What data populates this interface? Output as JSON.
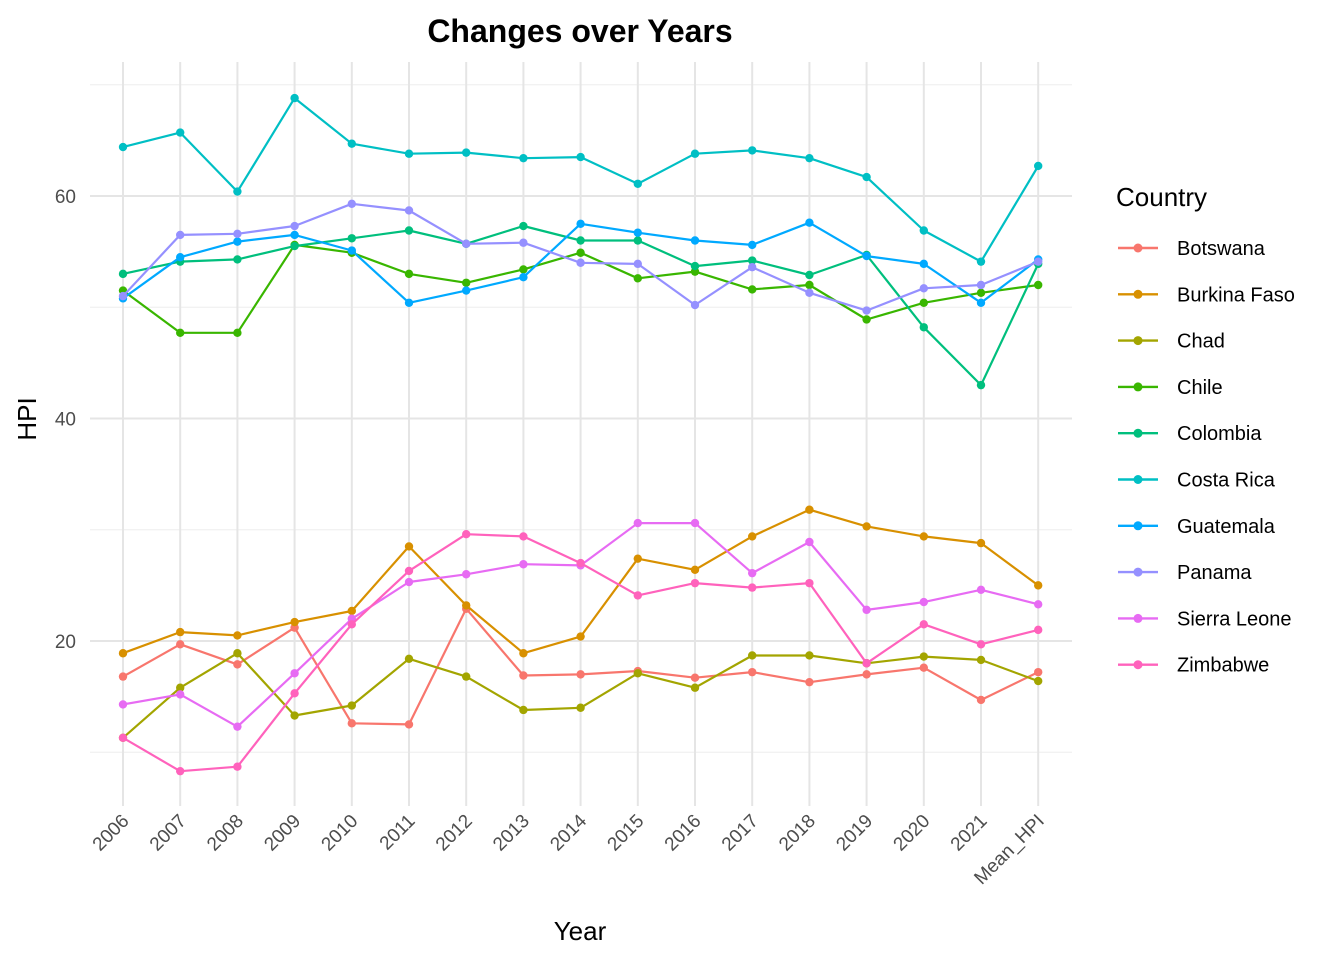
{
  "chart_data": {
    "type": "line",
    "title": "Changes over Years",
    "xlabel": "Year",
    "ylabel": "HPI",
    "categories": [
      "2006",
      "2007",
      "2008",
      "2009",
      "2010",
      "2011",
      "2012",
      "2013",
      "2014",
      "2015",
      "2016",
      "2017",
      "2018",
      "2019",
      "2020",
      "2021",
      "Mean_HPI"
    ],
    "ylim": [
      6,
      71
    ],
    "y_ticks": [
      20,
      40,
      60
    ],
    "grid": true,
    "legend_title": "Country",
    "legend_position": "right",
    "series": [
      {
        "name": "Botswana",
        "color": "#F8766D",
        "values": [
          16.8,
          19.7,
          17.9,
          21.2,
          12.6,
          12.5,
          22.9,
          16.9,
          17.0,
          17.3,
          16.7,
          17.2,
          16.3,
          17.0,
          17.6,
          14.7,
          17.2
        ]
      },
      {
        "name": "Burkina Faso",
        "color": "#D89000",
        "values": [
          18.9,
          20.8,
          20.5,
          21.7,
          22.7,
          28.5,
          23.2,
          18.9,
          20.4,
          27.4,
          26.4,
          29.4,
          31.8,
          30.3,
          29.4,
          28.8,
          25.0
        ]
      },
      {
        "name": "Chad",
        "color": "#A3A500",
        "values": [
          11.3,
          15.8,
          18.9,
          13.3,
          14.2,
          18.4,
          16.8,
          13.8,
          14.0,
          17.1,
          15.8,
          18.7,
          18.7,
          18.0,
          18.6,
          18.3,
          16.4
        ]
      },
      {
        "name": "Chile",
        "color": "#39B600",
        "values": [
          51.5,
          47.7,
          47.7,
          55.6,
          54.9,
          53.0,
          52.2,
          53.4,
          54.9,
          52.6,
          53.2,
          51.6,
          52.0,
          48.9,
          50.4,
          51.3,
          52.0
        ]
      },
      {
        "name": "Colombia",
        "color": "#00BF7D",
        "values": [
          53.0,
          54.1,
          54.3,
          55.5,
          56.2,
          56.9,
          55.7,
          57.3,
          56.0,
          56.0,
          53.7,
          54.2,
          52.9,
          54.7,
          48.2,
          43.0,
          53.9
        ]
      },
      {
        "name": "Costa Rica",
        "color": "#00BFC4",
        "values": [
          64.4,
          65.7,
          60.4,
          68.8,
          64.7,
          63.8,
          63.9,
          63.4,
          63.5,
          61.1,
          63.8,
          64.1,
          63.4,
          61.7,
          56.9,
          54.1,
          62.7
        ]
      },
      {
        "name": "Guatemala",
        "color": "#00A9FF",
        "values": [
          50.8,
          54.5,
          55.9,
          56.5,
          55.1,
          50.4,
          51.5,
          52.7,
          57.5,
          56.7,
          56.0,
          55.6,
          57.6,
          54.6,
          53.9,
          50.4,
          54.3
        ]
      },
      {
        "name": "Panama",
        "color": "#9590FF",
        "values": [
          51.0,
          56.5,
          56.6,
          57.3,
          59.3,
          58.7,
          55.7,
          55.8,
          54.0,
          53.9,
          50.2,
          53.6,
          51.3,
          49.7,
          51.7,
          52.0,
          54.1
        ]
      },
      {
        "name": "Sierra Leone",
        "color": "#E76BF3",
        "values": [
          14.3,
          15.2,
          12.3,
          17.1,
          22.0,
          25.3,
          26.0,
          26.9,
          26.8,
          30.6,
          30.6,
          26.1,
          28.9,
          22.8,
          23.5,
          24.6,
          23.3
        ]
      },
      {
        "name": "Zimbabwe",
        "color": "#FF62BC",
        "values": [
          11.3,
          8.3,
          8.7,
          15.3,
          21.5,
          26.3,
          29.6,
          29.4,
          27.0,
          24.1,
          25.2,
          24.8,
          25.2,
          18.0,
          21.5,
          19.7,
          21.0
        ]
      }
    ]
  }
}
